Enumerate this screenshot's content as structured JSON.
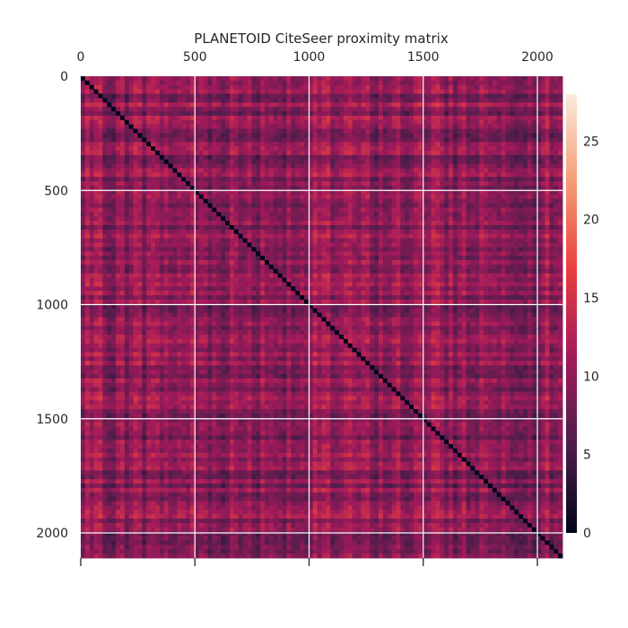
{
  "chart_data": {
    "type": "heatmap",
    "title": "PLANETOID CiteSeer proximity matrix",
    "xlabel": "",
    "ylabel": "",
    "n": 2110,
    "xlim": [
      0,
      2110
    ],
    "ylim": [
      2110,
      0
    ],
    "x_ticks": [
      0,
      500,
      1000,
      1500,
      2000
    ],
    "y_ticks": [
      0,
      500,
      1000,
      1500,
      2000
    ],
    "x_axis_position": "top",
    "grid": true,
    "diagonal_value": 0,
    "typical_range": [
      5,
      15
    ],
    "colorbar": {
      "position": "right",
      "range": [
        0,
        28
      ],
      "ticks": [
        0,
        5,
        10,
        15,
        20,
        25
      ],
      "colormap": "rocket",
      "colors": [
        "#03051a",
        "#4c1d4b",
        "#a11a5b",
        "#e83f3f",
        "#f69c73",
        "#faebdd"
      ]
    }
  }
}
